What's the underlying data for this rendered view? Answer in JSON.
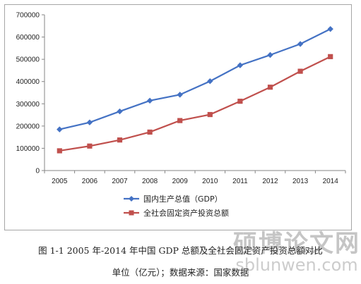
{
  "chart_data": {
    "type": "line",
    "categories": [
      "2005",
      "2006",
      "2007",
      "2008",
      "2009",
      "2010",
      "2011",
      "2012",
      "2013",
      "2014"
    ],
    "series": [
      {
        "name": "国内生产总值（GDP）",
        "color": "#4472c4",
        "marker": "diamond",
        "values": [
          184937,
          216314,
          265810,
          314045,
          340903,
          401513,
          473104,
          519470,
          568845,
          636139
        ]
      },
      {
        "name": "全社会固定资产投资总额",
        "color": "#c0504d",
        "marker": "square",
        "values": [
          88774,
          109998,
          137324,
          172828,
          224599,
          251684,
          311485,
          374695,
          446294,
          512021
        ]
      }
    ],
    "y_ticks": [
      "0",
      "100000",
      "200000",
      "300000",
      "400000",
      "500000",
      "600000",
      "700000"
    ],
    "ylim": [
      0,
      700000
    ],
    "grid": false,
    "legend_position": "bottom"
  },
  "caption": {
    "line1": "图 1-1 2005 年-2014 年中国 GDP 总额及全社会固定资产投资总额对比",
    "line2": "单位（亿元）；数据来源：国家数据"
  },
  "watermark": {
    "title": "硕博论文网",
    "url": "sblunwen.com"
  }
}
